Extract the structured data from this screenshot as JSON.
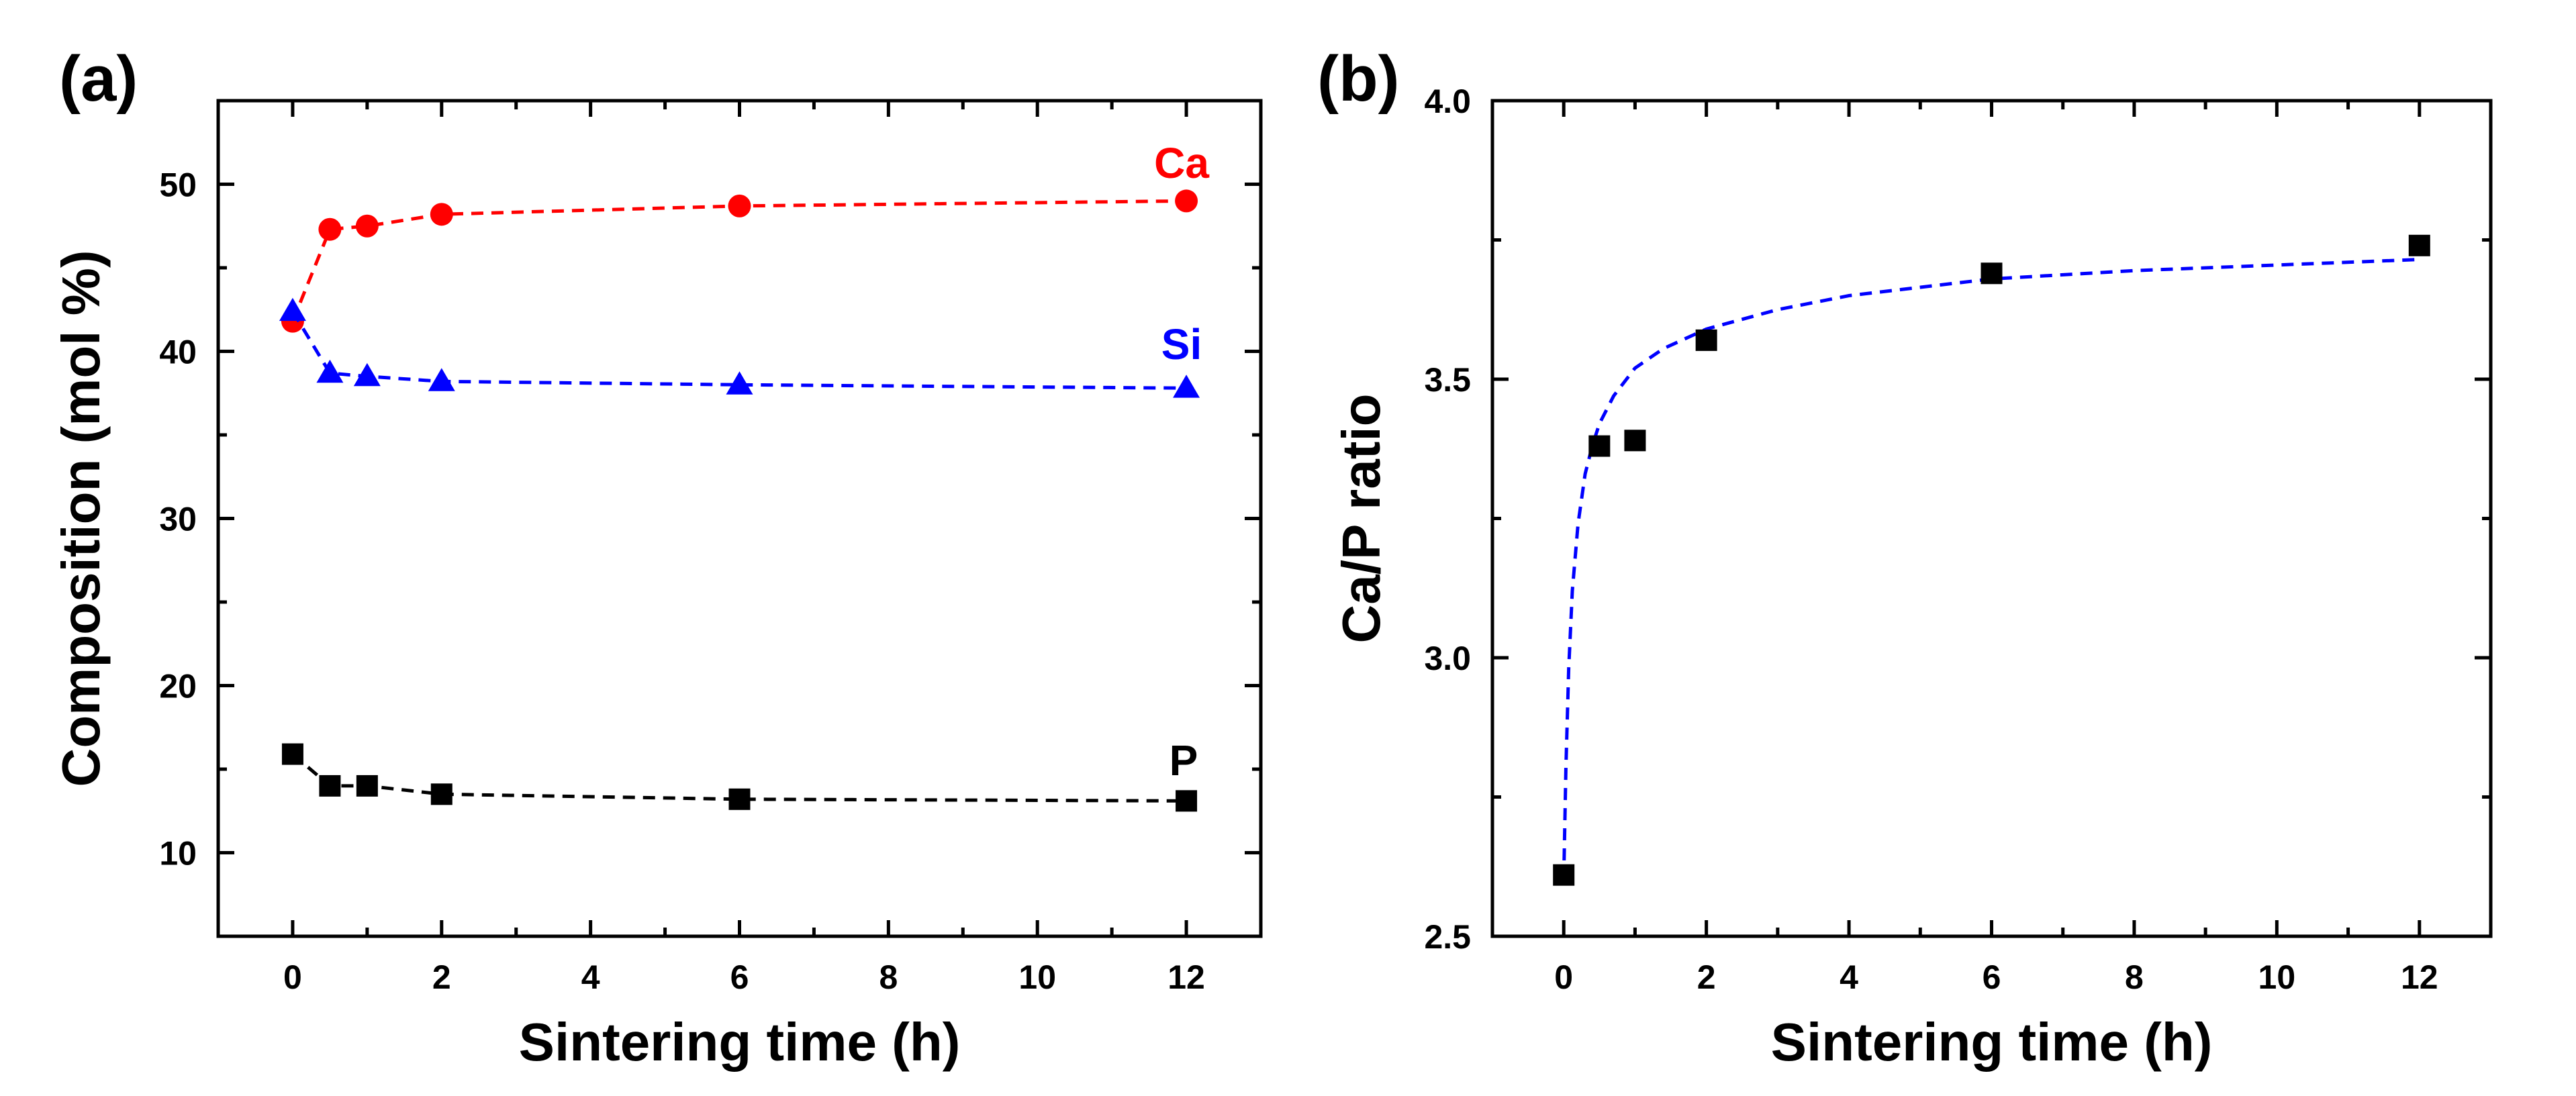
{
  "chart_data": [
    {
      "type": "scatter",
      "panel_label": "(a)",
      "xlabel": "Sintering time (h)",
      "ylabel": "Composition (mol %)",
      "xlim": [
        -1,
        13
      ],
      "ylim": [
        5,
        55
      ],
      "xticks": [
        0,
        2,
        4,
        6,
        8,
        10,
        12
      ],
      "yticks": [
        10,
        20,
        30,
        40,
        50
      ],
      "grid": false,
      "series": [
        {
          "name": "Ca",
          "marker": "circle",
          "color": "#ff0000",
          "x": [
            0,
            0.5,
            1,
            2,
            6,
            12
          ],
          "y": [
            41.8,
            47.3,
            47.5,
            48.2,
            48.7,
            49.0
          ]
        },
        {
          "name": "Si",
          "marker": "triangle",
          "color": "#0000ff",
          "x": [
            0,
            0.5,
            1,
            2,
            6,
            12
          ],
          "y": [
            42.4,
            38.7,
            38.5,
            38.2,
            38.0,
            37.8
          ]
        },
        {
          "name": "P",
          "marker": "square",
          "color": "#000000",
          "x": [
            0,
            0.5,
            1,
            2,
            6,
            12
          ],
          "y": [
            15.9,
            14.0,
            14.0,
            13.5,
            13.2,
            13.1
          ]
        }
      ]
    },
    {
      "type": "scatter",
      "panel_label": "(b)",
      "xlabel": "Sintering time (h)",
      "ylabel": "Ca/P ratio",
      "xlim": [
        -1,
        13
      ],
      "ylim": [
        2.5,
        4.0
      ],
      "xticks": [
        0,
        2,
        4,
        6,
        8,
        10,
        12
      ],
      "yticks": [
        2.5,
        3.0,
        3.5,
        4.0
      ],
      "ytick_labels": [
        "2.5",
        "3.0",
        "3.5",
        "4.0"
      ],
      "grid": false,
      "series": [
        {
          "name": "Ca/P",
          "marker": "square",
          "color": "#000000",
          "x": [
            0,
            0.5,
            1,
            2,
            6,
            12
          ],
          "y": [
            2.61,
            3.38,
            3.39,
            3.57,
            3.69,
            3.74
          ]
        }
      ],
      "fit": {
        "color": "#0000ff",
        "style": "dashed",
        "x": [
          0,
          0.03,
          0.07,
          0.12,
          0.2,
          0.3,
          0.4,
          0.5,
          0.7,
          1,
          1.4,
          2,
          3,
          4,
          6,
          8,
          10,
          12
        ],
        "y": [
          2.6,
          2.8,
          2.98,
          3.12,
          3.24,
          3.33,
          3.38,
          3.42,
          3.47,
          3.52,
          3.555,
          3.59,
          3.625,
          3.65,
          3.68,
          3.695,
          3.705,
          3.715
        ]
      }
    }
  ]
}
